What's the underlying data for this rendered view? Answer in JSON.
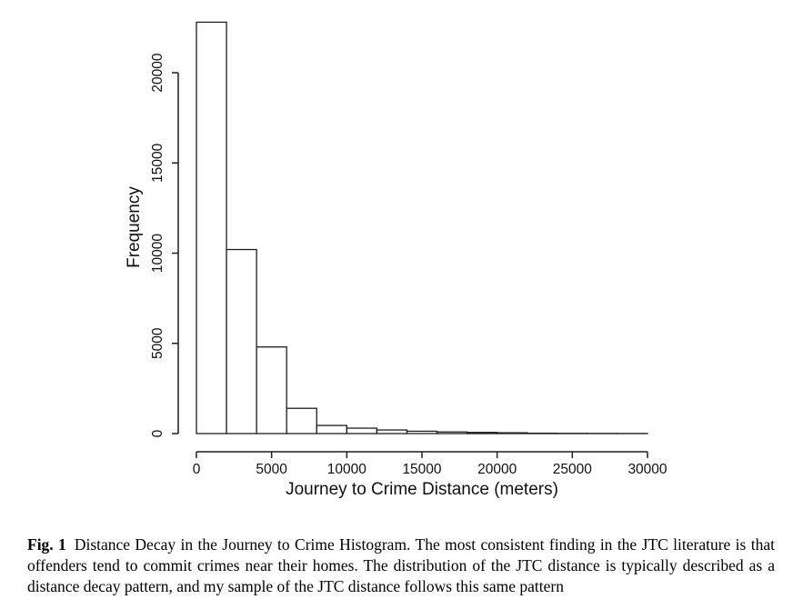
{
  "figure": {
    "caption_label": "Fig. 1",
    "caption_text": "Distance Decay in the Journey to Crime Histogram. The most consistent finding in the JTC literature is that offenders tend to commit crimes near their homes. The distribution of the JTC distance is typically described as a distance decay pattern, and my sample of the JTC distance follows this same pattern"
  },
  "chart_data": {
    "type": "bar",
    "subtype": "histogram",
    "title": "",
    "xlabel": "Journey to Crime Distance (meters)",
    "ylabel": "Frequency",
    "bin_width": 2000,
    "bin_edges": [
      0,
      2000,
      4000,
      6000,
      8000,
      10000,
      12000,
      14000,
      16000,
      18000,
      20000,
      22000,
      24000,
      26000,
      28000,
      30000
    ],
    "values": [
      22800,
      10200,
      4800,
      1400,
      450,
      300,
      200,
      130,
      90,
      65,
      45,
      20,
      12,
      8,
      5
    ],
    "x_ticks": [
      0,
      5000,
      10000,
      15000,
      20000,
      25000,
      30000
    ],
    "x_tick_labels": [
      "0",
      "5000",
      "10000",
      "15000",
      "20000",
      "25000",
      "30000"
    ],
    "y_ticks": [
      0,
      5000,
      10000,
      15000,
      20000
    ],
    "y_tick_labels": [
      "0",
      "5000",
      "10000",
      "15000",
      "20000"
    ],
    "xlim": [
      0,
      30000
    ],
    "ylim": [
      0,
      22800
    ],
    "grid": false,
    "legend": false,
    "bar_fill": "#ffffff",
    "stroke_color": "#1f1f1f",
    "text_color": "#111111"
  }
}
